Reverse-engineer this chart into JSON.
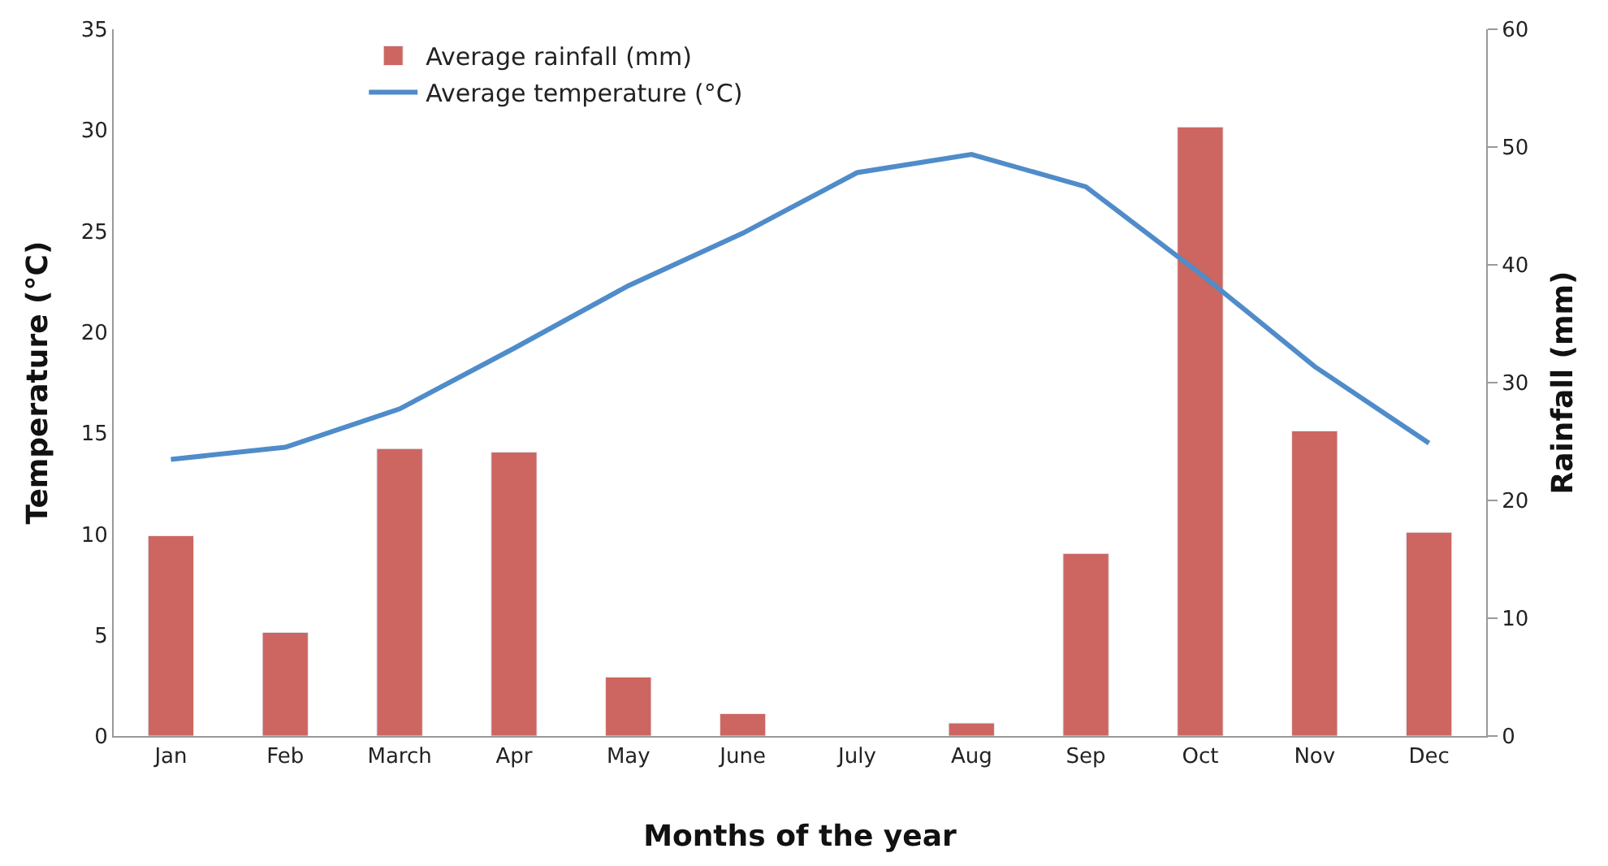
{
  "chart_data": {
    "type": "bar",
    "xlabel": "Months of the year",
    "ylabel": "Temperature (°C)",
    "y2label": "Rainfall (mm)",
    "categories": [
      "Jan",
      "Feb",
      "March",
      "Apr",
      "May",
      "June",
      "July",
      "Aug",
      "Sep",
      "Oct",
      "Nov",
      "Dec"
    ],
    "series": [
      {
        "name": "Average rainfall (mm)",
        "axis": "y2",
        "color": "#cd6660",
        "values": [
          17.0,
          8.8,
          24.4,
          24.1,
          5.0,
          1.9,
          null,
          1.1,
          15.5,
          51.7,
          25.9,
          17.3
        ]
      },
      {
        "name": "Average temperature (°C)",
        "type": "line",
        "axis": "y",
        "color": "#4f8cc9",
        "values": [
          13.7,
          14.3,
          16.2,
          19.2,
          22.3,
          24.9,
          27.9,
          28.8,
          27.2,
          22.9,
          18.3,
          14.5
        ]
      }
    ],
    "ylim": [
      0,
      35
    ],
    "yticks": [
      0,
      5,
      10,
      15,
      20,
      25,
      30,
      35
    ],
    "y2lim": [
      0,
      60
    ],
    "y2ticks": [
      0,
      10,
      20,
      30,
      40,
      50,
      60
    ],
    "legend": "top",
    "marker": "none"
  }
}
